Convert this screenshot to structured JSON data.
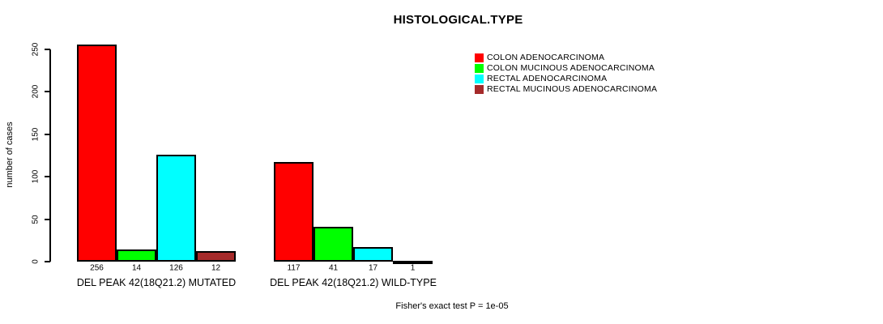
{
  "chart_data": {
    "type": "bar",
    "title": "HISTOLOGICAL.TYPE",
    "xlabel": "",
    "ylabel": "number of cases",
    "ylim": [
      0,
      250
    ],
    "yticks": [
      0,
      50,
      100,
      150,
      200,
      250
    ],
    "grid": false,
    "legend_position": "top-right",
    "categories": [
      "DEL PEAK 42(18Q21.2) MUTATED",
      "DEL PEAK 42(18Q21.2) WILD-TYPE"
    ],
    "series": [
      {
        "name": "COLON ADENOCARCINOMA",
        "color": "#FF0000",
        "values": [
          256,
          117
        ]
      },
      {
        "name": "COLON MUCINOUS ADENOCARCINOMA",
        "color": "#00FF00",
        "values": [
          14,
          41
        ]
      },
      {
        "name": "RECTAL ADENOCARCINOMA",
        "color": "#00FFFF",
        "values": [
          126,
          17
        ]
      },
      {
        "name": "RECTAL MUCINOUS ADENOCARCINOMA",
        "color": "#A52A2A",
        "values": [
          12,
          1
        ]
      }
    ],
    "bar_value_labels": [
      [
        256,
        14,
        126,
        12
      ],
      [
        117,
        41,
        17,
        1
      ]
    ],
    "note": "Fisher's exact test P = 1e-05"
  },
  "colors": {
    "axis": "#000000",
    "background": "#FFFFFF",
    "text": "#000000"
  }
}
